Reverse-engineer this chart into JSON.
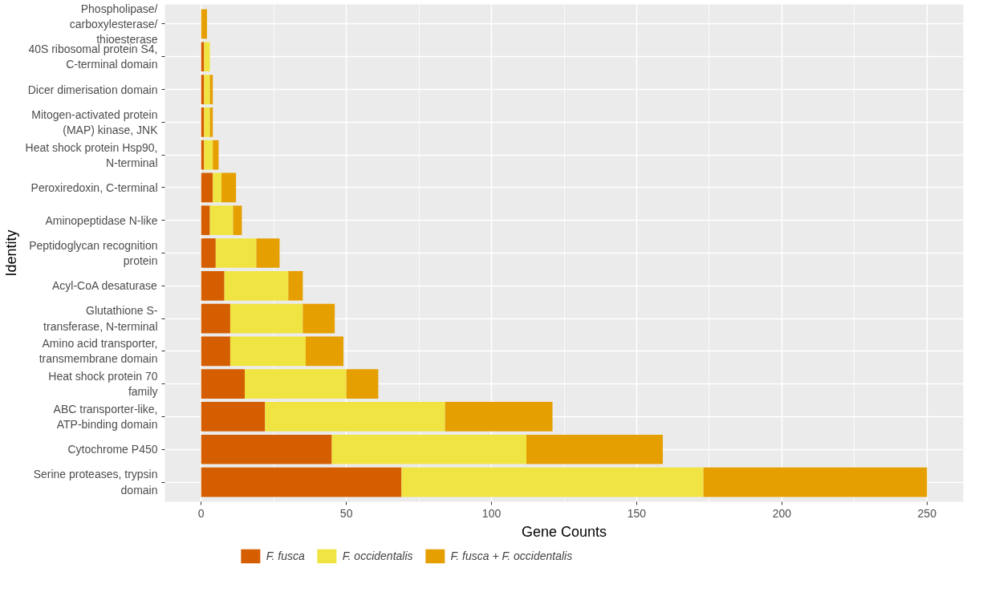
{
  "chart_data": {
    "type": "bar",
    "orientation": "horizontal",
    "stacked": true,
    "xlabel": "Gene Counts",
    "ylabel": "Identity",
    "categories": [
      "Phospholipase/\ncarboxylesterase/\nthioesterase",
      "40S ribosomal protein S4,\nC-terminal domain",
      "Dicer dimerisation domain",
      "Mitogen-activated protein\n(MAP) kinase, JNK",
      "Heat shock protein Hsp90,\nN-terminal",
      "Peroxiredoxin, C-terminal",
      "Aminopeptidase N-like",
      "Peptidoglycan recognition\nprotein",
      "Acyl-CoA desaturase",
      "Glutathione S-\ntransferase, N-terminal",
      "Amino acid transporter,\ntransmembrane domain",
      "Heat shock protein 70\nfamily",
      "ABC transporter-like,\nATP-binding domain",
      "Cytochrome P450",
      "Serine proteases, trypsin\ndomain"
    ],
    "series": [
      {
        "name": "F. fusca",
        "color": "#d55e00",
        "values": [
          0,
          1,
          1,
          1,
          1,
          4,
          3,
          5,
          8,
          10,
          10,
          15,
          22,
          45,
          69
        ]
      },
      {
        "name": "F. occidentalis",
        "color": "#f0e442",
        "values": [
          0,
          2,
          2,
          2,
          3,
          3,
          8,
          14,
          22,
          25,
          26,
          35,
          62,
          67,
          104
        ]
      },
      {
        "name": "F. fusca + F. occidentalis",
        "color": "#e69f00",
        "values": [
          2,
          0,
          1,
          1,
          2,
          5,
          3,
          8,
          5,
          11,
          13,
          11,
          37,
          47,
          77
        ]
      }
    ],
    "xlim": [
      -12.5,
      262.5
    ],
    "xticks": [
      0,
      50,
      100,
      150,
      200,
      250
    ],
    "grid": true,
    "legend": "bottom"
  }
}
